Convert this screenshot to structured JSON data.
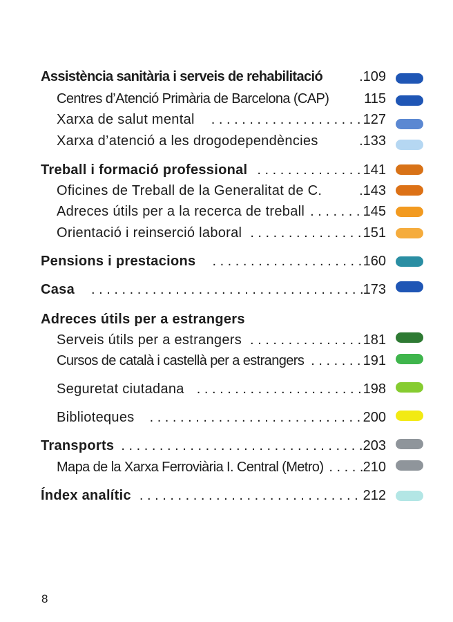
{
  "toc": {
    "entries": [
      {
        "label": "Assistència sanitària i serveis de rehabilitació",
        "leader": ".",
        "page": "109",
        "color": "#1f56b5"
      },
      {
        "label": "Centres d’Atenció Primària de Barcelona (CAP)",
        "leader": "",
        "page": "115",
        "color": "#1f56b5"
      },
      {
        "label": "Xarxa de salut mental",
        "leader": "",
        "page": "127",
        "color": "#5b88d2"
      },
      {
        "label": "Xarxa d’atenció a les drogodependències",
        "leader": ".",
        "page": "133",
        "color": "#b5d7f2"
      },
      {
        "label": "Treball i formació professional",
        "leader": "",
        "page": "141",
        "color": "#d87217"
      },
      {
        "label": "Oficines de Treball de la Generalitat de C.",
        "leader": ".",
        "page": "143",
        "color": "#dc7116"
      },
      {
        "label": "Adreces útils per a la recerca de treball",
        "leader": "",
        "page": "145",
        "color": "#f29a20"
      },
      {
        "label": "Orientació i reinserció laboral",
        "leader": "",
        "page": "151",
        "color": "#f5ac3d"
      },
      {
        "label": "Pensions i prestacions",
        "leader": "",
        "page": "160",
        "color": "#2a8ea3"
      },
      {
        "label": "Casa",
        "leader": "",
        "page": "173",
        "color": "#1f56b5"
      },
      {
        "label": "Adreces útils per a estrangers"
      },
      {
        "label": "Serveis útils per a estrangers",
        "leader": "",
        "page": "181",
        "color": "#2e7a33"
      },
      {
        "label": "Cursos de català i castellà per a estrangers",
        "leader": "",
        "page": "191",
        "color": "#3fb54c"
      },
      {
        "label": "Seguretat ciutadana",
        "leader": "",
        "page": "198",
        "color": "#86cc30"
      },
      {
        "label": "Biblioteques",
        "leader": "",
        "page": "200",
        "color": "#f2ea13"
      },
      {
        "label": "Transports",
        "leader": "",
        "page": "203",
        "color": "#8f959b"
      },
      {
        "label": "Mapa de la Xarxa Ferroviària I. Central (Metro)",
        "leader": "",
        "page": "210",
        "color": "#8f959b"
      },
      {
        "label": "Índex analític",
        "leader": "",
        "page": "212",
        "color": "#b3e6e5"
      }
    ]
  },
  "footer": {
    "page_number": "8"
  }
}
